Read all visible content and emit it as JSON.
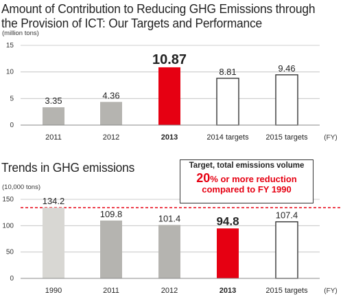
{
  "titles": {
    "chart1_line1": "Amount of Contribution to Reducing GHG Emissions through",
    "chart1_line2": "the Provision of ICT: Our Targets and Performance",
    "chart2": "Trends in GHG emissions"
  },
  "callout": {
    "heading": "Target, total emissions volume",
    "pct": "20",
    "line2_rest": "% or more reduction",
    "line3": "compared to FY 1990"
  },
  "colors": {
    "gray": "#b5b4b0",
    "light_gray": "#d8d7d3",
    "red": "#e60012",
    "outline": "#333333"
  },
  "chart_data": [
    {
      "type": "bar",
      "unit_label": "(million tons)",
      "x_unit": "(FY)",
      "categories": [
        "2011",
        "2012",
        "2013",
        "2014 targets",
        "2015 targets"
      ],
      "values": [
        3.35,
        4.36,
        10.87,
        8.81,
        9.46
      ],
      "value_labels": [
        "3.35",
        "4.36",
        "10.87",
        "8.81",
        "9.46"
      ],
      "bar_styles": [
        "gray",
        "gray",
        "red",
        "outline",
        "outline"
      ],
      "bold_index": 2,
      "yticks": [
        "0",
        "5",
        "10",
        "15"
      ],
      "ylim": [
        0,
        15
      ]
    },
    {
      "type": "bar",
      "unit_label": "(10,000 tons)",
      "x_unit": "(FY)",
      "categories": [
        "1990",
        "2011",
        "2012",
        "2013",
        "2015 targets"
      ],
      "values": [
        134.2,
        109.8,
        101.4,
        94.8,
        107.4
      ],
      "value_labels": [
        "134.2",
        "109.8",
        "101.4",
        "94.8",
        "107.4"
      ],
      "bar_styles": [
        "light_gray",
        "gray",
        "gray",
        "red",
        "outline"
      ],
      "bold_index": 3,
      "yticks": [
        "0",
        "50",
        "100",
        "150"
      ],
      "ylim": [
        0,
        150
      ],
      "reference_line": 134.2
    }
  ]
}
